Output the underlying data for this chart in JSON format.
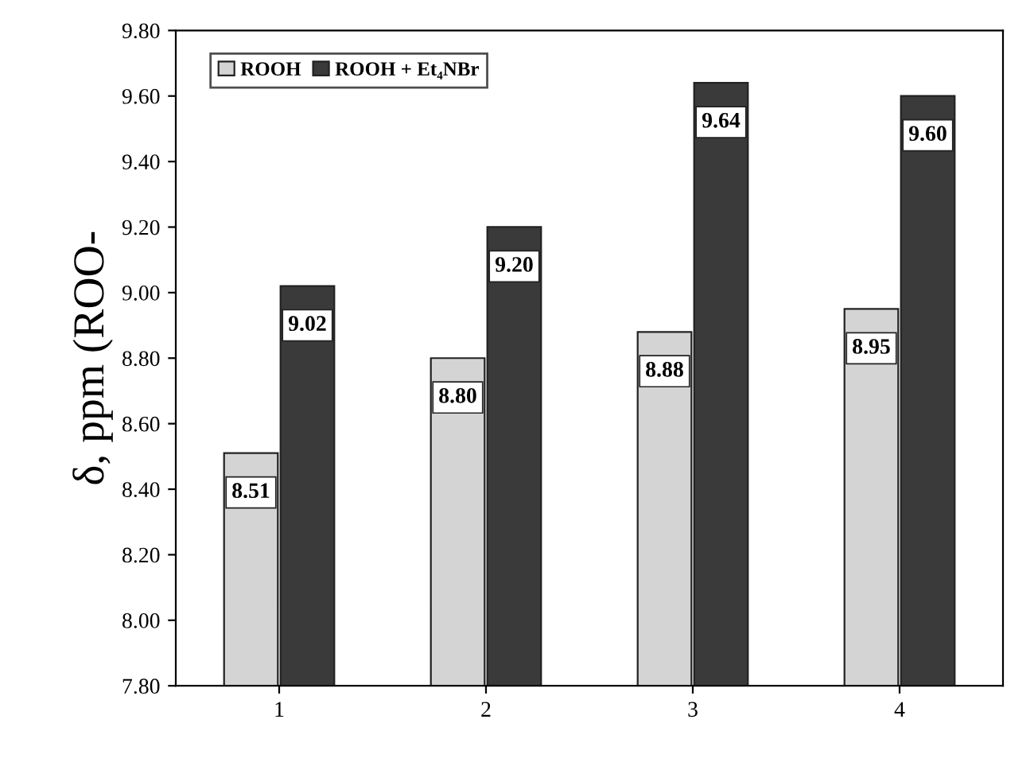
{
  "chart_data": {
    "type": "bar",
    "ylabel": "δ, ppm (ROO-",
    "categories": [
      "1",
      "2",
      "3",
      "4"
    ],
    "series": [
      {
        "name": "ROOH",
        "color": "#d4d4d4",
        "values": [
          8.51,
          8.8,
          8.88,
          8.95
        ],
        "value_labels": [
          "8.51",
          "8.80",
          "8.88",
          "8.95"
        ]
      },
      {
        "name": "ROOH + Et₄NBr",
        "color": "#3a3a3a",
        "values": [
          9.02,
          9.2,
          9.64,
          9.6
        ],
        "value_labels": [
          "9.02",
          "9.20",
          "9.64",
          "9.60"
        ]
      }
    ],
    "ylim": [
      7.8,
      9.8
    ],
    "yticks": [
      {
        "value": 7.8,
        "label": "7.80"
      },
      {
        "value": 8.0,
        "label": "8.00"
      },
      {
        "value": 8.2,
        "label": "8.20"
      },
      {
        "value": 8.4,
        "label": "8.40"
      },
      {
        "value": 8.6,
        "label": "8.60"
      },
      {
        "value": 8.8,
        "label": "8.80"
      },
      {
        "value": 9.0,
        "label": "9.00"
      },
      {
        "value": 9.2,
        "label": "9.20"
      },
      {
        "value": 9.4,
        "label": "9.40"
      },
      {
        "value": 9.6,
        "label": "9.60"
      },
      {
        "value": 9.8,
        "label": "9.80"
      }
    ],
    "legend": "top left",
    "grid": false
  }
}
